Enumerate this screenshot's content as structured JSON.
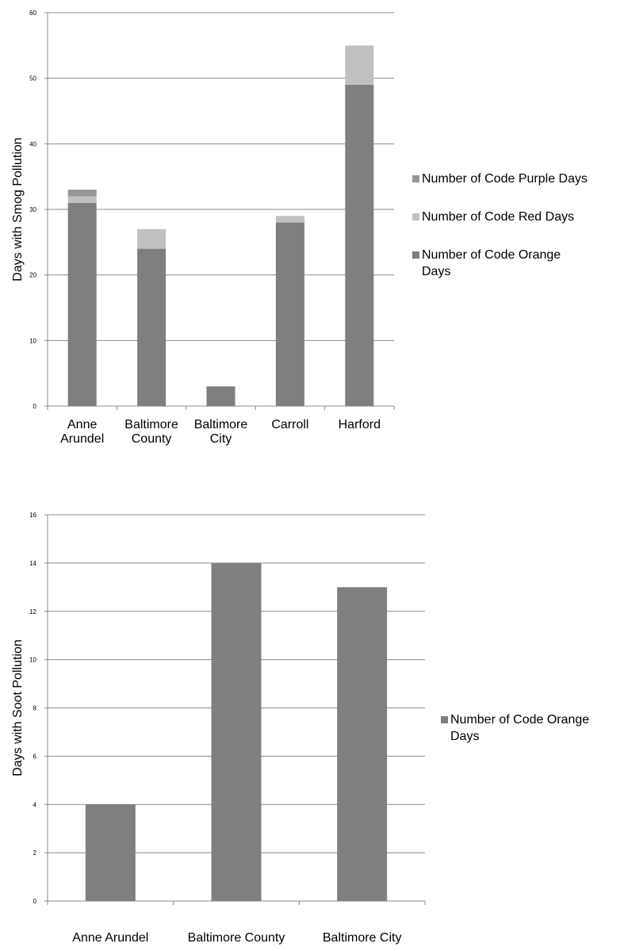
{
  "chart_data": [
    {
      "type": "bar",
      "stacked": true,
      "ylabel": "Days with Smog Pollution",
      "xlabel": "",
      "ylim": [
        0,
        60
      ],
      "yticks": [
        0,
        10,
        20,
        30,
        40,
        50,
        60
      ],
      "grid": true,
      "legend_position": "right",
      "categories": [
        [
          "Anne",
          "Arundel"
        ],
        [
          "Baltimore",
          "County"
        ],
        [
          "Baltimore",
          "City"
        ],
        [
          "Carroll"
        ],
        [
          "Harford"
        ]
      ],
      "series": [
        {
          "name": "Number of Code Orange Days",
          "color": "#7f7f82",
          "values": [
            31,
            24,
            3,
            28,
            49
          ]
        },
        {
          "name": "Number of Code Red Days",
          "color": "#c0c0c0",
          "values": [
            1,
            3,
            0,
            1,
            6
          ]
        },
        {
          "name": "Number of Code Purple Days",
          "color": "#969696",
          "values": [
            1,
            0,
            0,
            0,
            0
          ]
        }
      ],
      "legend_order": [
        2,
        1,
        0
      ],
      "legend_lines": [
        [
          "Number of Code Purple Days"
        ],
        [
          "Number of Code Red Days"
        ],
        [
          "Number of Code Orange",
          "Days"
        ]
      ]
    },
    {
      "type": "bar",
      "stacked": false,
      "ylabel": "Days with Soot Pollution",
      "xlabel": "",
      "ylim": [
        0,
        16
      ],
      "yticks": [
        0,
        2,
        4,
        6,
        8,
        10,
        12,
        14,
        16
      ],
      "grid": true,
      "legend_position": "right",
      "categories": [
        [
          "Anne Arundel"
        ],
        [
          "Baltimore County"
        ],
        [
          "Baltimore City"
        ]
      ],
      "series": [
        {
          "name": "Number of Code Orange Days",
          "color": "#7f7f82",
          "values": [
            4,
            14,
            13
          ]
        }
      ],
      "legend_order": [
        0
      ],
      "legend_lines": [
        [
          "Number of Code Orange",
          "Days"
        ]
      ]
    }
  ]
}
